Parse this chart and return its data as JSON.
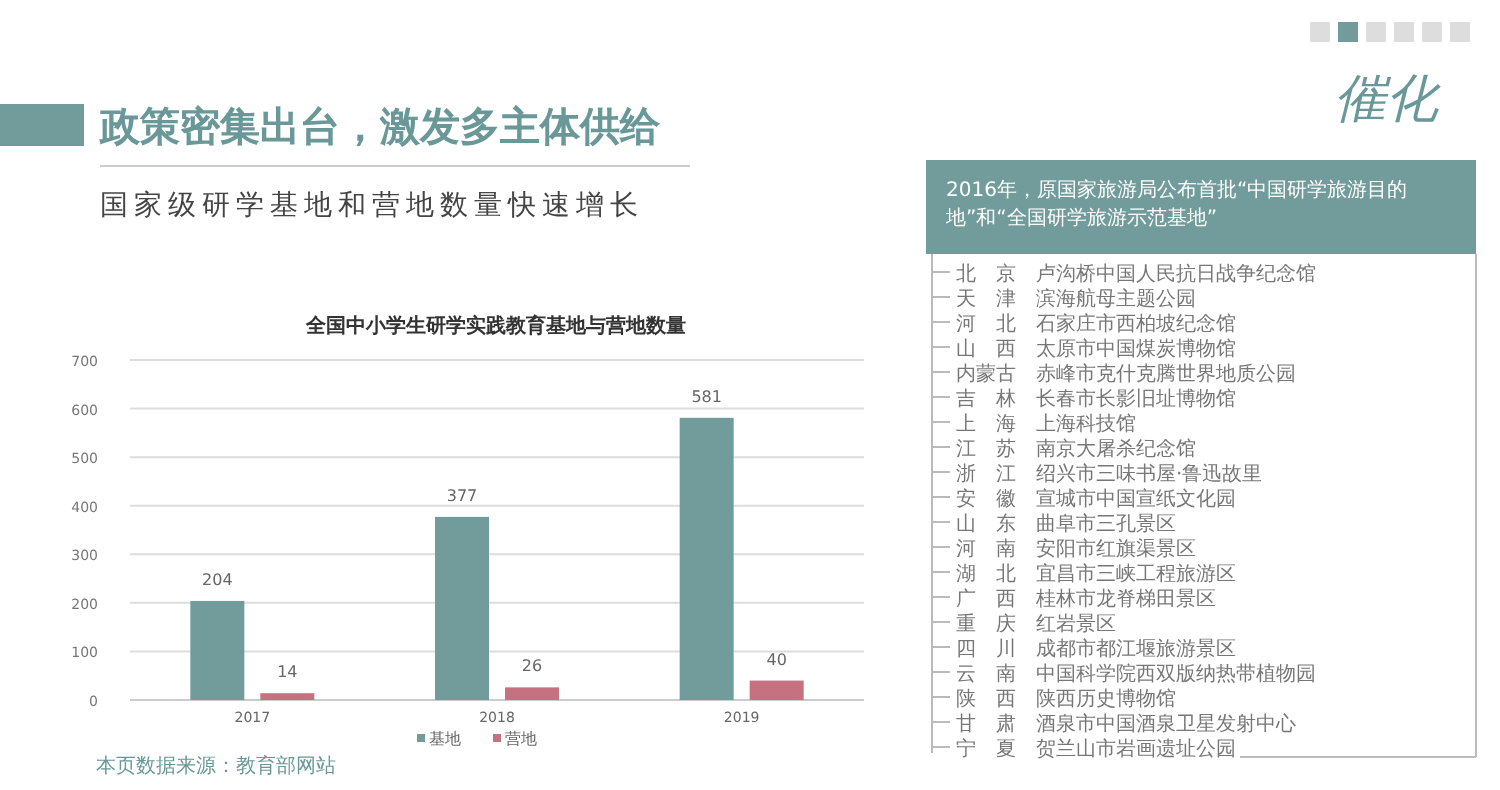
{
  "chart_data": [
    {
      "type": "bar",
      "title": "全国中小学生研学实践教育基地与营地数量",
      "annotations": [
        "政策密集出台，激发多主体供给",
        "国家级研学基地和营地数量快速增长",
        "本页数据来源：教育部网站",
        "催化"
      ],
      "categories": [
        "2017",
        "2018",
        "2019"
      ],
      "series": [
        {
          "name": "基地",
          "color": "#729c9c",
          "values": [
            204,
            377,
            581
          ]
        },
        {
          "name": "营地",
          "color": "#c6717f",
          "values": [
            14,
            26,
            40
          ]
        }
      ],
      "ylim": [
        0,
        700
      ],
      "yticks": [
        0,
        100,
        200,
        300,
        400,
        500,
        600,
        700
      ],
      "grid": "y",
      "legend": "bottom",
      "data_labels": true
    },
    {
      "type": "other",
      "title": "2016年，原国家旅游局公布首批“中国研学旅游目的地”和“全国研学旅游示范基地”",
      "annotations": [
        "北　京　卢沟桥中国人民抗日战争纪念馆",
        "天　津　滨海航母主题公园",
        "河　北　石家庄市西柏坡纪念馆",
        "山　西　太原市中国煤炭博物馆",
        "内蒙古　赤峰市克什克腾世界地质公园",
        "吉　林　长春市长影旧址博物馆",
        "上　海　上海科技馆",
        "江　苏　南京大屠杀纪念馆",
        "浙　江　绍兴市三味书屋·鲁迅故里",
        "安　徽　宣城市中国宣纸文化园",
        "山　东　曲阜市三孔景区",
        "河　南　安阳市红旗渠景区",
        "湖　北　宜昌市三峡工程旅游区",
        "广　西　桂林市龙脊梯田景区",
        "重　庆　红岩景区",
        "四　川　成都市都江堰旅游景区",
        "云　南　中国科学院西双版纳热带植物园",
        "陕　西　陕西历史博物馆",
        "甘　肃　酒泉市中国酒泉卫星发射中心",
        "宁　夏　贺兰山市岩画遗址公园"
      ]
    }
  ]
}
